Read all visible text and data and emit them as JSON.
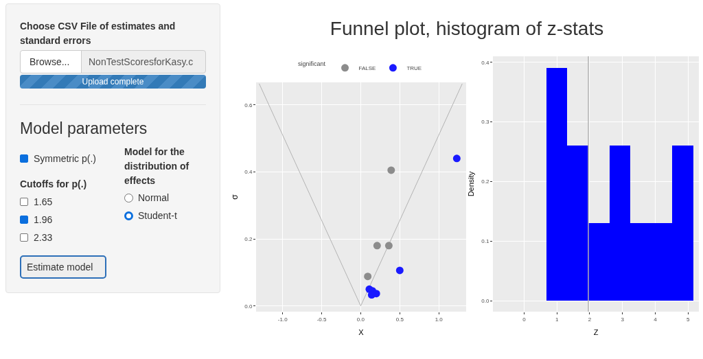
{
  "chart_data": [
    {
      "type": "other",
      "annotations": [
        "Choose CSV File of estimates and standard errors",
        "Browse...",
        "NonTestScoresforKasy.c",
        "Upload complete",
        "Model parameters",
        "Symmetric p(.)",
        "Cutoffs for p(.)",
        "1.65",
        "1.96",
        "2.33",
        "Estimate model",
        "Model for the distribution of effects",
        "Normal",
        "Student-t"
      ]
    },
    {
      "type": "scatter",
      "title": "Funnel plot, histogram of z-stats",
      "xlabel": "X",
      "ylabel": "σ",
      "legend_title": "significant",
      "legend": "top",
      "grid": true,
      "xlim": [
        -1.34,
        1.35
      ],
      "ylim": [
        -0.017,
        0.667
      ],
      "xticks": [
        {
          "value": -1,
          "label": "-1.0"
        },
        {
          "value": -0.5,
          "label": "-0.5"
        },
        {
          "value": 0,
          "label": "0.0"
        },
        {
          "value": 0.5,
          "label": "0.5"
        },
        {
          "value": 1,
          "label": "1.0"
        }
      ],
      "yticks": [
        {
          "value": 0,
          "label": "0.0"
        },
        {
          "value": 0.2,
          "label": "0.2"
        },
        {
          "value": 0.4,
          "label": "0.4"
        },
        {
          "value": 0.6,
          "label": "0.6"
        }
      ],
      "series": [
        {
          "type": "line",
          "color": "#b3b3b3",
          "x": [
            -1.3,
            0,
            1.3
          ],
          "values": [
            0.663,
            0,
            0.663
          ]
        },
        {
          "name": "FALSE",
          "color": "#8c8c8c",
          "marker": "circle",
          "x": [
            0.39,
            0.21,
            0.36,
            0.09
          ],
          "values": [
            0.405,
            0.18,
            0.18,
            0.088
          ]
        },
        {
          "name": "TRUE",
          "color": "#1a1aff",
          "marker": "circle",
          "x": [
            1.23,
            0.5,
            0.11,
            0.15,
            0.2,
            0.14
          ],
          "values": [
            0.44,
            0.106,
            0.05,
            0.045,
            0.037,
            0.033
          ]
        }
      ]
    },
    {
      "type": "histogram",
      "xlabel": "Z",
      "ylabel": "Density",
      "grid": true,
      "color": "#0000ff",
      "bins": [
        0.68,
        1.32,
        1.96,
        2.6,
        3.24,
        3.88,
        4.52,
        5.16
      ],
      "values": [
        0.39,
        0.26,
        0.13,
        0.26,
        0.13,
        0.13,
        0.26
      ],
      "xlim": [
        -0.95,
        5.33
      ],
      "ylim": [
        -0.018,
        0.41
      ],
      "xticks": [
        0,
        1,
        2,
        3,
        4,
        5
      ],
      "yticks": [
        {
          "value": 0,
          "label": "0.0"
        },
        {
          "value": 0.1,
          "label": "0.1"
        },
        {
          "value": 0.2,
          "label": "0.2"
        },
        {
          "value": 0.3,
          "label": "0.3"
        },
        {
          "value": 0.4,
          "label": "0.4"
        }
      ],
      "ref_lines": [
        {
          "axis": "x",
          "value": 1.96,
          "color": "#b3b3b3"
        }
      ]
    }
  ]
}
